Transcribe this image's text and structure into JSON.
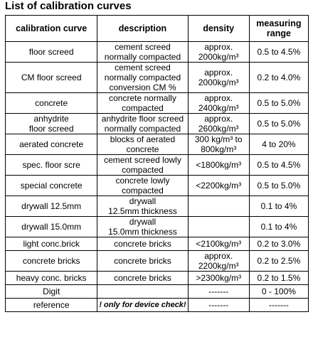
{
  "title": "List of calibration curves",
  "headers": {
    "curve": "calibration curve",
    "description": "description",
    "density": "density",
    "range": "measuring\nrange"
  },
  "rows": [
    {
      "curve": "floor screed",
      "description": "cement screed\nnormally compacted",
      "density": "approx.\n2000kg/m³",
      "range": "0.5 to 4.5%"
    },
    {
      "curve": "CM floor screed",
      "description": "cement screed\nnormally compacted\nconversion CM %",
      "density": "approx.\n2000kg/m³",
      "range": "0.2 to 4.0%"
    },
    {
      "curve": "concrete",
      "description": "concrete normally\ncompacted",
      "density": "approx.\n2400kg/m³",
      "range": "0.5 to 5.0%"
    },
    {
      "curve": "anhydrite\nfloor screed",
      "description": "anhydrite floor screed\nnormally compacted",
      "density": "approx.\n2600kg/m³",
      "range": "0.5 to 5.0%"
    },
    {
      "curve": "aerated concrete",
      "description": "blocks of aerated\nconcrete",
      "density": "300 kg/m³ to\n800kg/m³",
      "range": "4 to 20%"
    },
    {
      "curve": "spec. floor scre",
      "description": "cement screed lowly\ncompacted",
      "density": "<1800kg/m³",
      "range": "0.5 to 4.5%"
    },
    {
      "curve": "special concrete",
      "description": "concrete lowly\ncompacted",
      "density": "<2200kg/m³",
      "range": "0.5 to 5.0%"
    },
    {
      "curve": "drywall 12.5mm",
      "description": "drywall\n12.5mm thickness",
      "density": "",
      "range": "0.1 to 4%"
    },
    {
      "curve": "drywall 15.0mm",
      "description": "drywall\n15.0mm thickness",
      "density": "",
      "range": "0.1 to 4%"
    },
    {
      "curve": "light conc.brick",
      "description": "concrete bricks",
      "density": "<2100kg/m³",
      "range": "0.2 to 3.0%"
    },
    {
      "curve": "concrete bricks",
      "description": "concrete bricks",
      "density": "approx.\n2200kg/m³",
      "range": "0.2 to 2.5%"
    },
    {
      "curve": "heavy conc. bricks",
      "description": "concrete bricks",
      "density": ">2300kg/m³",
      "range": "0.2 to 1.5%"
    },
    {
      "curve": "Digit",
      "description": "",
      "density": "-------",
      "range": "0 - 100%"
    },
    {
      "curve": "reference",
      "description": "! only for device check!",
      "density": "-------",
      "range": "-------"
    }
  ]
}
